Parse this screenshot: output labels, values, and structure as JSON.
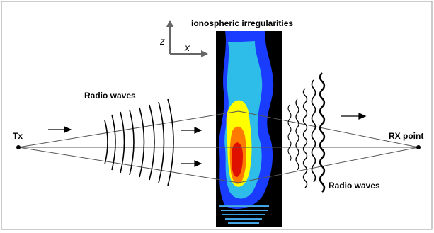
{
  "diagram": {
    "title": "ionospheric irregularities",
    "tx_label": "Tx",
    "rx_label": "RX point",
    "incoming_waves_label": "Radio waves",
    "scattered_waves_label": "Radio waves",
    "axis_z_label": "z",
    "axis_x_label": "x",
    "colors": {
      "frame": "#9a9a9a",
      "ray_lines": "#555555",
      "wave_lines": "#000000",
      "slab_background": "#000000",
      "irregularity_outer": "#1a3cff",
      "irregularity_mid": "#34e8e0",
      "irregularity_inner": "#ffff00",
      "irregularity_core": "#e01000",
      "axis_arrows": "#666666"
    },
    "icons": [
      "tx-point",
      "rx-point",
      "propagation-arrow"
    ]
  }
}
